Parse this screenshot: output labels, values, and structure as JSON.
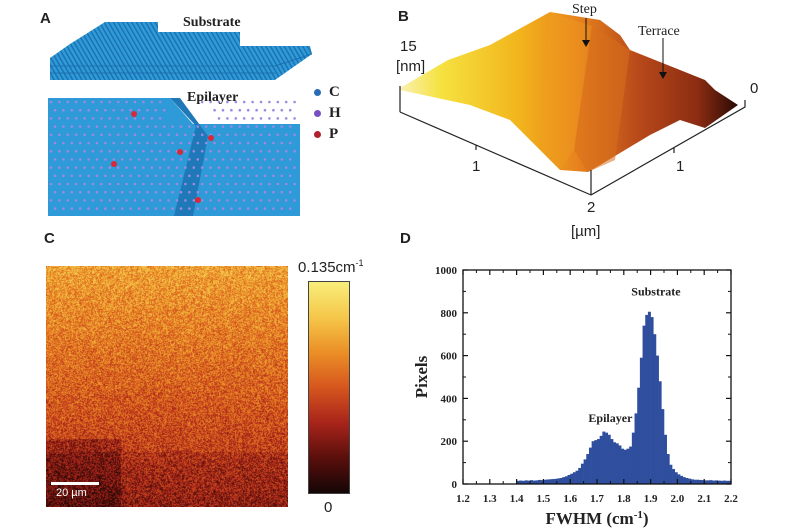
{
  "panels": {
    "a": {
      "letter": "A",
      "substrate_label": "Substrate",
      "epilayer_label": "Epilayer",
      "legend": [
        {
          "symbol": "C",
          "color": "#2a6db5"
        },
        {
          "symbol": "H",
          "color": "#7a4fc2"
        },
        {
          "symbol": "P",
          "color": "#b0222e"
        }
      ],
      "lattice_color": "#2f9ad8",
      "h_atom_color": "#9a8ae0",
      "p_atom_color": "#d8283a"
    },
    "b": {
      "letter": "B",
      "z_max_label": "15",
      "z_unit_label": "[nm]",
      "z_zero_label": "0",
      "x_tick_label": "1",
      "y_tick_label": "1",
      "corner_label": "2",
      "xy_unit_label": "[µm]",
      "step_label": "Step",
      "terrace_label": "Terrace"
    },
    "c": {
      "letter": "C",
      "colorbar_max_label": "0.135cm",
      "colorbar_max_exp": "-1",
      "colorbar_min_label": "0",
      "scalebar_label": "20 µm",
      "colormap": [
        "#140606",
        "#5a0f0c",
        "#a8241a",
        "#d6561e",
        "#eb8f26",
        "#f5c74a",
        "#f8ee7a"
      ]
    },
    "d": {
      "letter": "D"
    }
  },
  "chart_data": {
    "type": "bar",
    "title": "",
    "xlabel": "FWHM (cm",
    "xlabel_exp": "-1",
    "xlabel_close": ")",
    "ylabel": "Pixels",
    "xlim": [
      1.2,
      2.2
    ],
    "ylim": [
      0,
      1000
    ],
    "xticks": [
      "1.2",
      "1.3",
      "1.4",
      "1.5",
      "1.6",
      "1.7",
      "1.8",
      "1.9",
      "2.0",
      "2.1",
      "2.2"
    ],
    "yticks": [
      "0",
      "200",
      "400",
      "600",
      "800",
      "1000"
    ],
    "bin_width": 0.01,
    "bin_start": 1.4,
    "fill_color": "#2f4e9e",
    "annotations": [
      {
        "text": "Substrate",
        "x": 1.92,
        "y": 880
      },
      {
        "text": "Epilayer",
        "x": 1.75,
        "y": 290
      }
    ],
    "values": [
      15,
      16,
      15,
      17,
      16,
      18,
      16,
      17,
      19,
      18,
      20,
      21,
      22,
      23,
      24,
      26,
      28,
      32,
      36,
      42,
      48,
      55,
      62,
      75,
      95,
      115,
      140,
      170,
      200,
      205,
      210,
      225,
      245,
      240,
      230,
      210,
      195,
      190,
      180,
      165,
      160,
      165,
      175,
      240,
      330,
      450,
      590,
      740,
      790,
      805,
      780,
      700,
      600,
      480,
      350,
      230,
      140,
      90,
      70,
      55,
      45,
      38,
      32,
      28,
      25,
      22,
      20,
      20,
      19,
      18,
      17,
      17,
      18,
      16,
      17,
      16,
      15,
      16,
      15,
      15
    ]
  }
}
